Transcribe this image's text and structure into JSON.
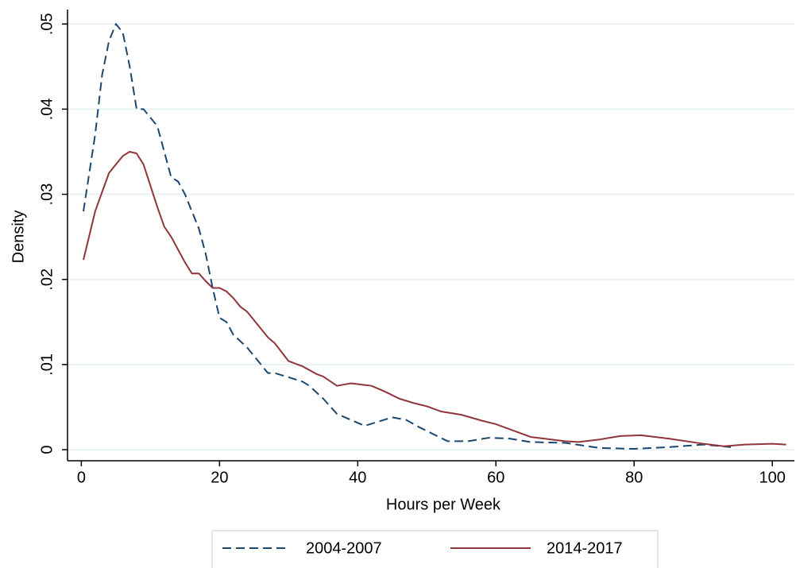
{
  "chart_data": {
    "type": "line",
    "x_label": "Hours per Week",
    "y_label": "Density",
    "xlim": [
      -2,
      103.2
    ],
    "ylim": [
      -0.0013,
      0.0517
    ],
    "xticks": [
      0,
      20,
      40,
      60,
      80,
      100
    ],
    "yticks": [
      0,
      {
        "value": 0.01,
        "label": ".01"
      },
      {
        "value": 0.02,
        "label": ".02"
      },
      {
        "value": 0.03,
        "label": ".03"
      },
      {
        "value": 0.04,
        "label": ".04"
      },
      {
        "value": 0.05,
        "label": ".05"
      }
    ],
    "grid": true,
    "legend": "bottom",
    "series": [
      {
        "name": "2004-2007",
        "color": "#1a476f",
        "dash": true,
        "x": [
          0.3,
          2,
          3,
          4,
          5,
          6,
          7,
          8,
          9,
          10,
          11,
          12,
          13,
          14,
          15,
          16,
          17,
          18,
          19,
          20,
          21,
          22,
          24,
          25,
          27,
          28,
          30,
          32,
          33,
          35,
          37,
          39,
          41,
          43,
          45,
          47,
          49,
          51,
          53,
          56,
          59,
          62,
          65,
          70,
          75,
          80,
          85,
          90,
          94
        ],
        "values": [
          0.028,
          0.037,
          0.044,
          0.048,
          0.05,
          0.049,
          0.045,
          0.04,
          0.04,
          0.039,
          0.038,
          0.035,
          0.032,
          0.0315,
          0.03,
          0.028,
          0.026,
          0.023,
          0.019,
          0.0155,
          0.015,
          0.0135,
          0.012,
          0.011,
          0.009,
          0.009,
          0.0085,
          0.008,
          0.0075,
          0.006,
          0.0042,
          0.0035,
          0.0028,
          0.0033,
          0.0038,
          0.0035,
          0.0026,
          0.0018,
          0.001,
          0.001,
          0.0014,
          0.0013,
          0.0009,
          0.0008,
          0.0002,
          0.0001,
          0.0003,
          0.0006,
          0.0003
        ]
      },
      {
        "name": "2014-2017",
        "color": "#90353b",
        "dash": false,
        "x": [
          0.3,
          2,
          4,
          5,
          6,
          7,
          8,
          9,
          10,
          11,
          12,
          13,
          14,
          15,
          16,
          17,
          18,
          19,
          20,
          21,
          22,
          23,
          24,
          25,
          27,
          28,
          30,
          32,
          34,
          35,
          37,
          39,
          41,
          42,
          44,
          46,
          48,
          50,
          52,
          55,
          58,
          60,
          62,
          65,
          70,
          72,
          75,
          78,
          81,
          85,
          90,
          93,
          96,
          100,
          102
        ],
        "values": [
          0.0223,
          0.028,
          0.0325,
          0.0335,
          0.0345,
          0.035,
          0.0348,
          0.0335,
          0.031,
          0.0285,
          0.0262,
          0.025,
          0.0235,
          0.022,
          0.0207,
          0.0207,
          0.0198,
          0.019,
          0.019,
          0.0186,
          0.0178,
          0.0168,
          0.0162,
          0.0152,
          0.0132,
          0.0125,
          0.0104,
          0.0098,
          0.0089,
          0.0086,
          0.0075,
          0.0078,
          0.0076,
          0.0075,
          0.0068,
          0.006,
          0.0055,
          0.0051,
          0.0045,
          0.0041,
          0.0034,
          0.003,
          0.0024,
          0.0015,
          0.001,
          0.0009,
          0.0012,
          0.0016,
          0.0017,
          0.0013,
          0.0007,
          0.0004,
          0.0006,
          0.0007,
          0.0006
        ]
      }
    ]
  }
}
